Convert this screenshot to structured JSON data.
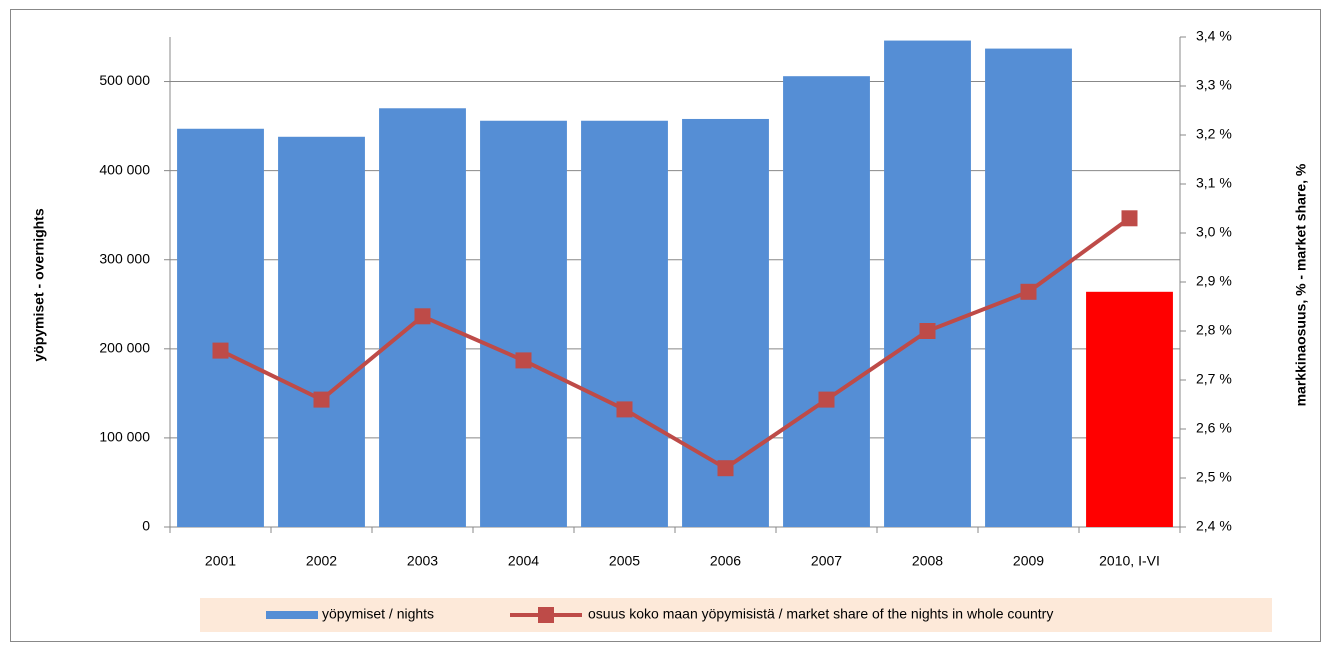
{
  "chart_data": {
    "type": "bar",
    "categories": [
      "2001",
      "2002",
      "2003",
      "2004",
      "2005",
      "2006",
      "2007",
      "2008",
      "2009",
      "2010, I-VI"
    ],
    "series": [
      {
        "name": "yöpymiset / nights",
        "color": "#558ed5",
        "colors": [
          "#558ed5",
          "#558ed5",
          "#558ed5",
          "#558ed5",
          "#558ed5",
          "#558ed5",
          "#558ed5",
          "#558ed5",
          "#558ed5",
          "#ff0000"
        ],
        "values": [
          447000,
          438000,
          470000,
          456000,
          456000,
          458000,
          506000,
          546000,
          537000,
          264000
        ]
      },
      {
        "name": "osuus koko maan yöpymisistä / market share of the nights in whole country",
        "type": "line",
        "axis": "y2",
        "color": "#be4b48",
        "values": [
          2.76,
          2.66,
          2.83,
          2.74,
          2.64,
          2.52,
          2.66,
          2.8,
          2.88,
          3.03
        ]
      }
    ],
    "ylabel": "yöpymiset - overnights",
    "y2label": "markkinaosuus, % - market share, %",
    "ylim": [
      0,
      550000
    ],
    "yticks": [
      0,
      {
        "value": 100000,
        "label": "100 000"
      },
      {
        "value": 200000,
        "label": "200 000"
      },
      {
        "value": 300000,
        "label": "300 000"
      },
      {
        "value": 400000,
        "label": "400 000"
      },
      {
        "value": 500000,
        "label": "500 000"
      }
    ],
    "y2lim": [
      2.4,
      3.4
    ],
    "y2ticks": [
      {
        "value": 2.4,
        "label": "2,4 %"
      },
      {
        "value": 2.5,
        "label": "2,5 %"
      },
      {
        "value": 2.6,
        "label": "2,6 %"
      },
      {
        "value": 2.7,
        "label": "2,7 %"
      },
      {
        "value": 2.8,
        "label": "2,8 %"
      },
      {
        "value": 2.9,
        "label": "2,9 %"
      },
      {
        "value": 3.0,
        "label": "3,0 %"
      },
      {
        "value": 3.1,
        "label": "3,1 %"
      },
      {
        "value": 3.2,
        "label": "3,2 %"
      },
      {
        "value": 3.3,
        "label": "3,3 %"
      },
      {
        "value": 3.4,
        "label": "3,4 %"
      }
    ],
    "grid": true,
    "legend": "bottom"
  }
}
